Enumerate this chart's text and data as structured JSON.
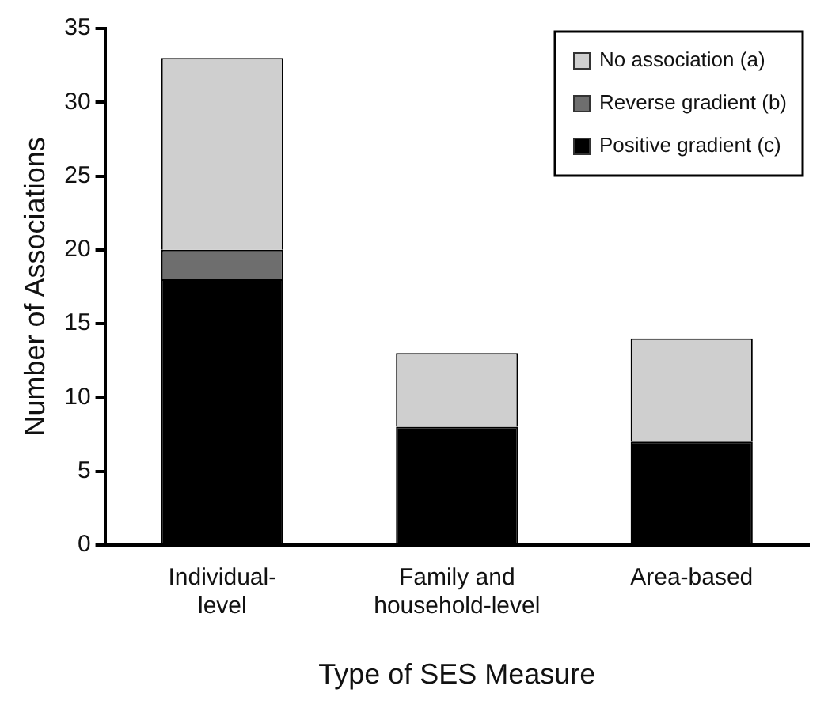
{
  "chart_data": {
    "type": "bar",
    "stacked": true,
    "xlabel": "Type of SES Measure",
    "ylabel": "Number of Associations",
    "categories": [
      "Individual-level",
      "Family and household-level",
      "Area-based"
    ],
    "series": [
      {
        "name": "Positive gradient (c)",
        "color": "#000000",
        "values": [
          18,
          8,
          7
        ]
      },
      {
        "name": "Reverse gradient (b)",
        "color": "#6e6e6e",
        "values": [
          2,
          0,
          0
        ]
      },
      {
        "name": "No association (a)",
        "color": "#cfcfcf",
        "values": [
          13,
          5,
          7
        ]
      }
    ],
    "ylim": [
      0,
      35
    ],
    "yticks": [
      0,
      5,
      10,
      15,
      20,
      25,
      30,
      35
    ],
    "grid": false,
    "legend": "top right"
  }
}
